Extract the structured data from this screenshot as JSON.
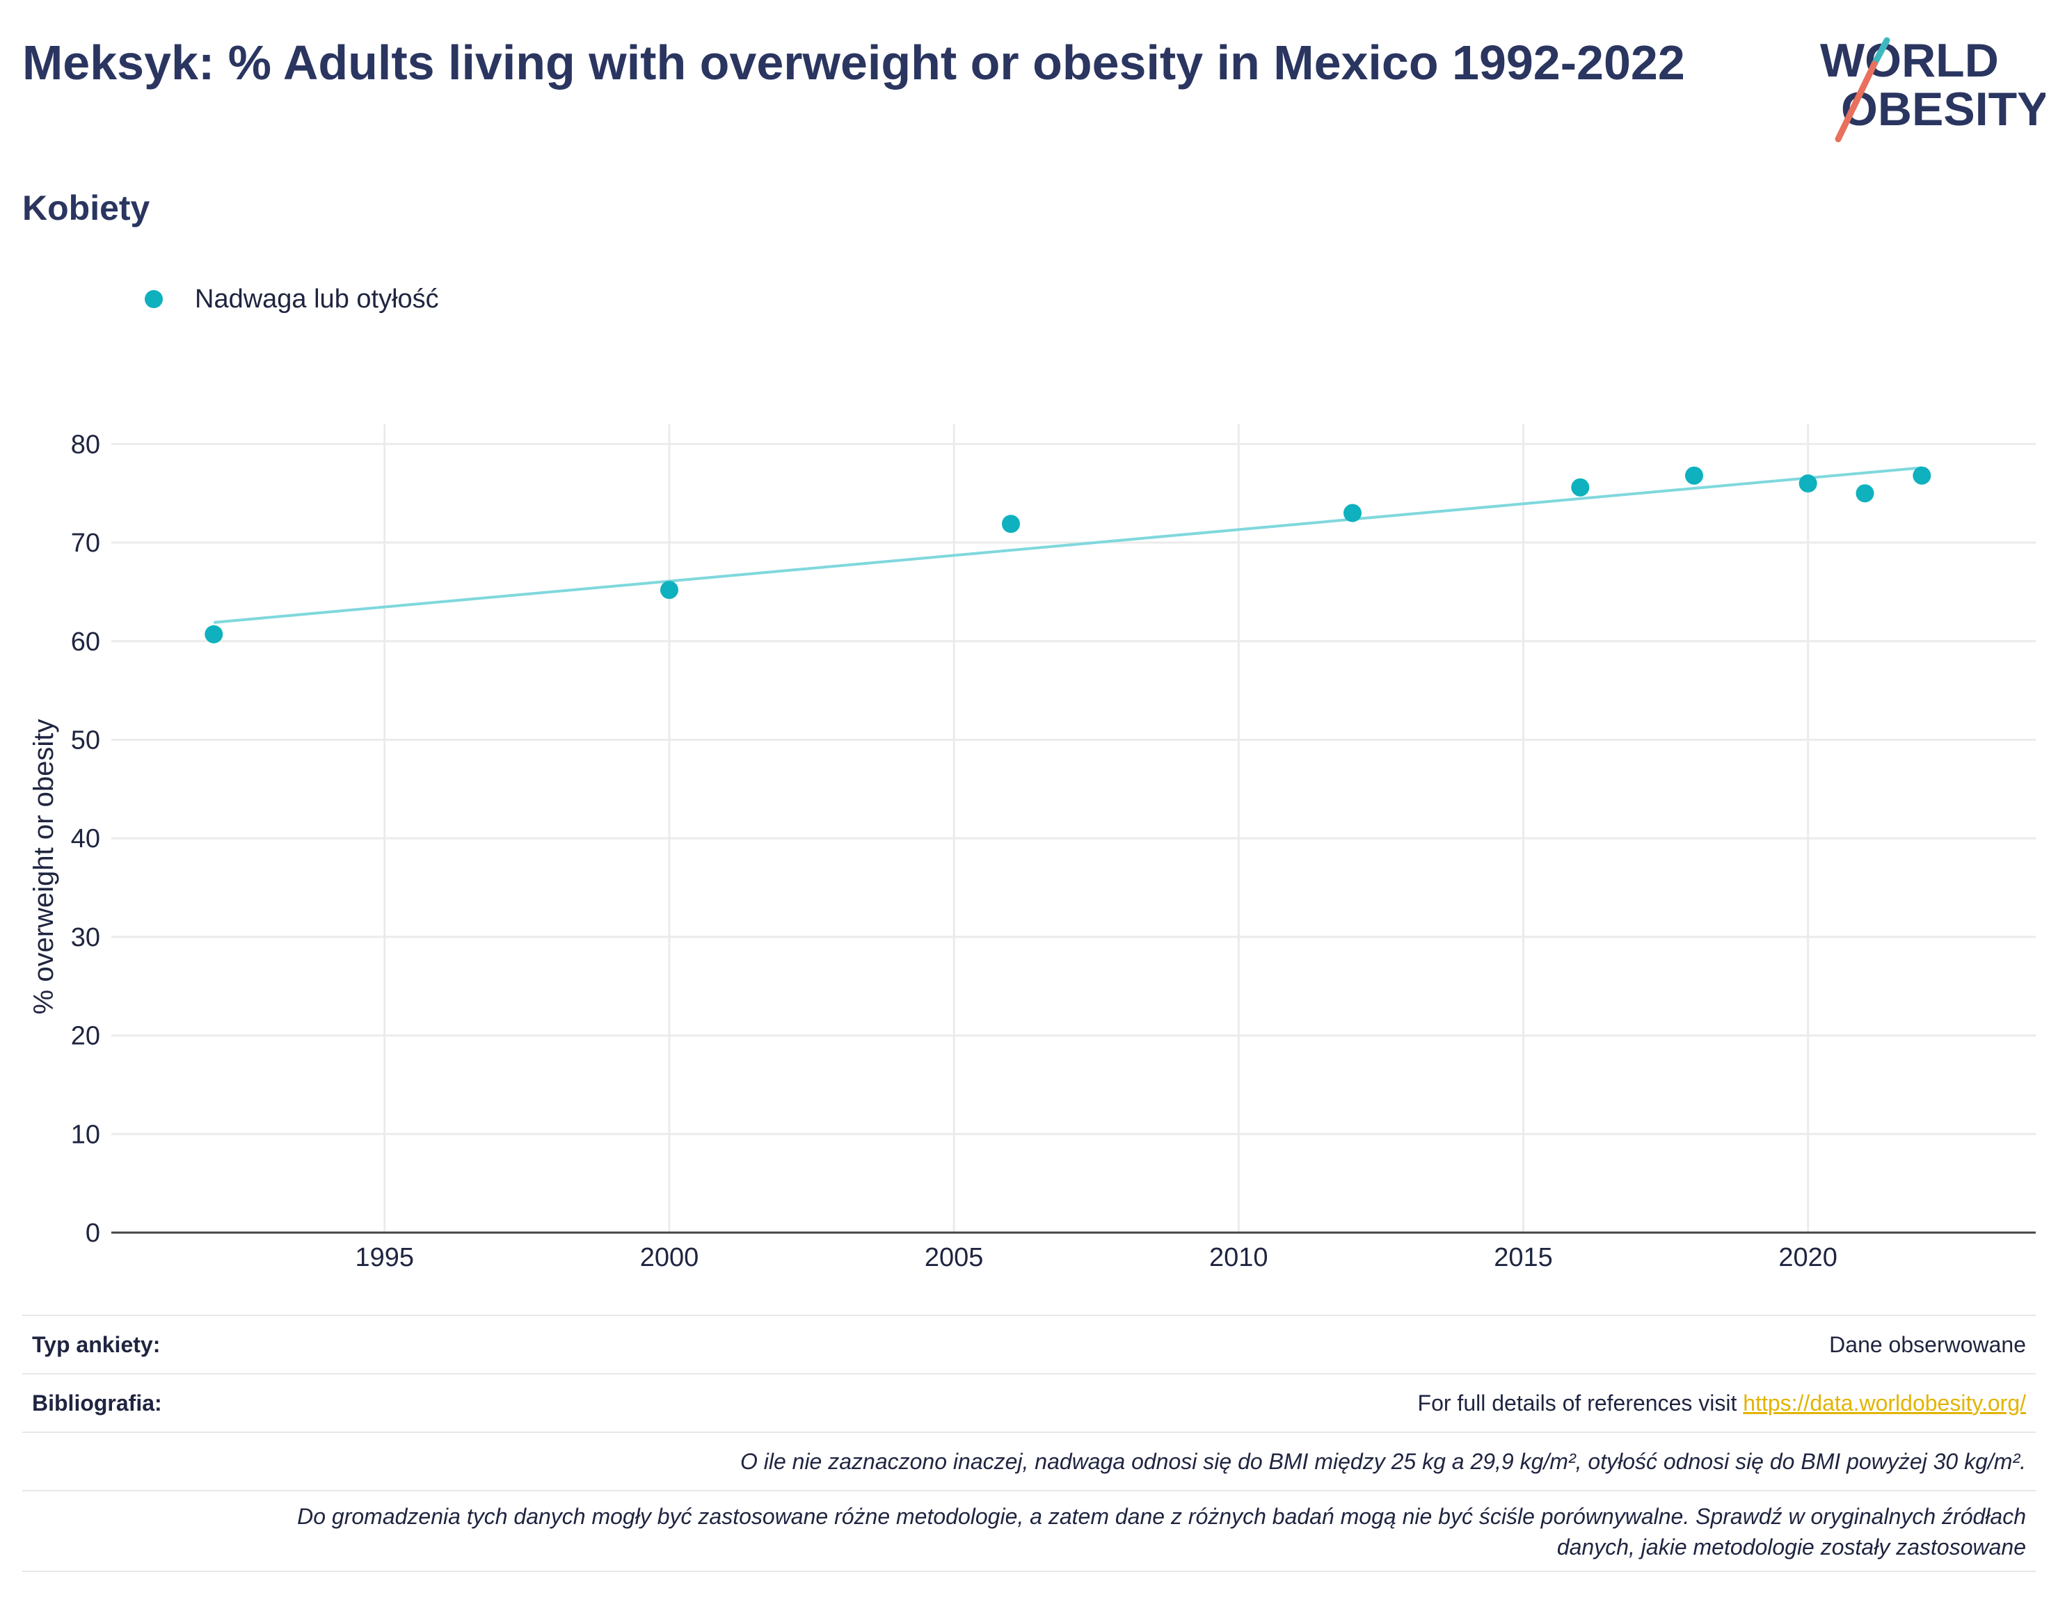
{
  "page": {
    "title": "Meksyk: % Adults living with overweight or obesity in Mexico 1992-2022",
    "subtitle": "Kobiety"
  },
  "logo": {
    "line1": "WORLD",
    "line2": "OBESITY",
    "text": "WORLD OBESITY"
  },
  "legend": {
    "label": "Nadwaga lub otyłość",
    "color": "#0eb1bd"
  },
  "colors": {
    "point": "#0eb1bd",
    "trend": "#7fd8dd",
    "title": "#2a3560",
    "logo_teal": "#3fb7c0",
    "logo_coral": "#e8705c",
    "link": "#e2b300"
  },
  "chart_data": {
    "type": "scatter",
    "title": "Meksyk: % Adults living with overweight or obesity in Mexico 1992-2022",
    "subtitle": "Kobiety",
    "xlabel": "",
    "ylabel": "% overweight or obesity",
    "x_ticks": [
      1995,
      2000,
      2005,
      2010,
      2015,
      2020
    ],
    "y_ticks": [
      0,
      10,
      20,
      30,
      40,
      50,
      60,
      70,
      80
    ],
    "xlim": [
      1990.2,
      2024
    ],
    "ylim": [
      0,
      82
    ],
    "grid": true,
    "legend_position": "top-left",
    "series": [
      {
        "name": "Nadwaga lub otyłość",
        "x": [
          1992,
          2000,
          2006,
          2012,
          2016,
          2018,
          2020,
          2021,
          2022
        ],
        "y": [
          60.7,
          65.2,
          71.9,
          73.0,
          75.6,
          76.8,
          76.0,
          75.0,
          76.8
        ]
      }
    ],
    "trendline": {
      "x": [
        1992,
        2022
      ],
      "y": [
        61.9,
        77.6
      ]
    }
  },
  "footer": {
    "survey_label": "Typ ankiety:",
    "survey_value": "Dane obserwowane",
    "biblio_label": "Bibliografia:",
    "biblio_text": "For full details of references visit ",
    "biblio_link": "https://data.worldobesity.org/",
    "note1": "O ile nie zaznaczono inaczej, nadwaga odnosi się do BMI między 25 kg a 29,9 kg/m², otyłość odnosi się do BMI powyżej 30 kg/m².",
    "note2_line1": "Do gromadzenia tych danych mogły być zastosowane różne metodologie, a zatem dane z różnych badań mogą nie być ściśle porównywalne. Sprawdź w oryginalnych źródłach",
    "note2_line2": "danych, jakie metodologie zostały zastosowane"
  }
}
